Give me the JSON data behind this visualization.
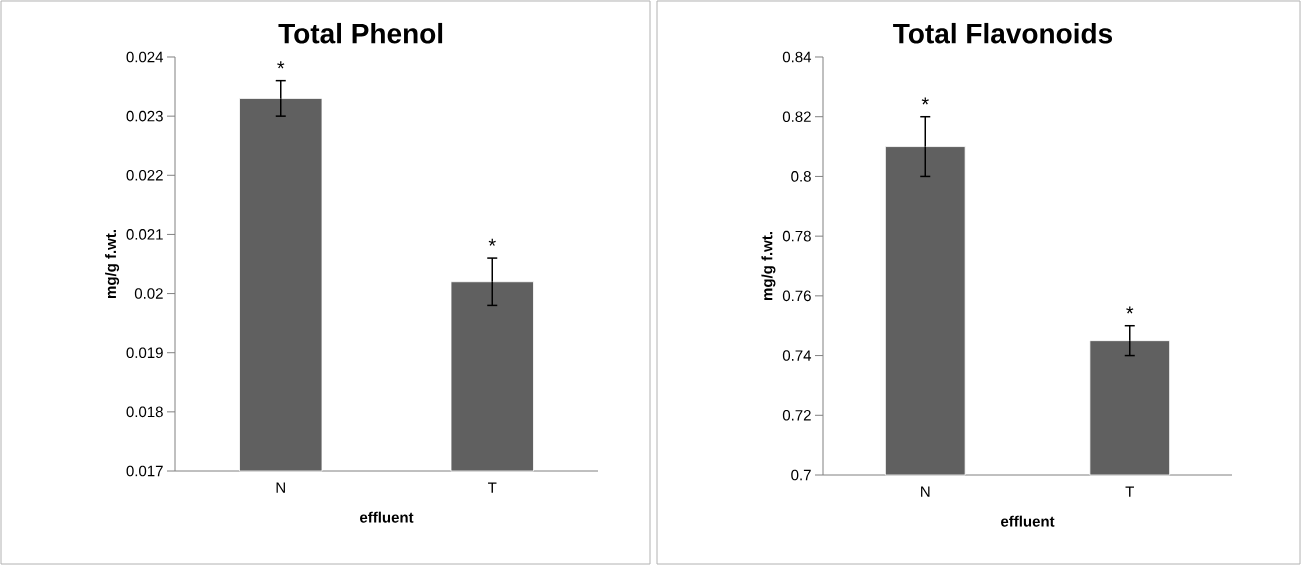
{
  "chart_data": [
    {
      "type": "bar",
      "title": "Total Phenol",
      "xlabel": "effluent",
      "ylabel": "mg/g f.wt.",
      "categories": [
        "N",
        "T"
      ],
      "values": [
        0.0233,
        0.0202
      ],
      "errors": [
        0.0003,
        0.0004
      ],
      "color": "#606060",
      "ylim": [
        0.017,
        0.024
      ],
      "yticks": [
        0.017,
        0.018,
        0.019,
        0.02,
        0.021,
        0.022,
        0.023,
        0.024
      ],
      "annotations": [
        "*",
        "*"
      ]
    },
    {
      "type": "bar",
      "title": "Total Flavonoids",
      "xlabel": "effluent",
      "ylabel": "mg/g f.wt.",
      "categories": [
        "N",
        "T"
      ],
      "values": [
        0.81,
        0.745
      ],
      "errors": [
        0.01,
        0.005
      ],
      "color": "#606060",
      "ylim": [
        0.7,
        0.84
      ],
      "yticks": [
        0.7,
        0.72,
        0.74,
        0.76,
        0.78,
        0.8,
        0.82,
        0.84
      ],
      "annotations": [
        "*",
        "*"
      ]
    }
  ]
}
